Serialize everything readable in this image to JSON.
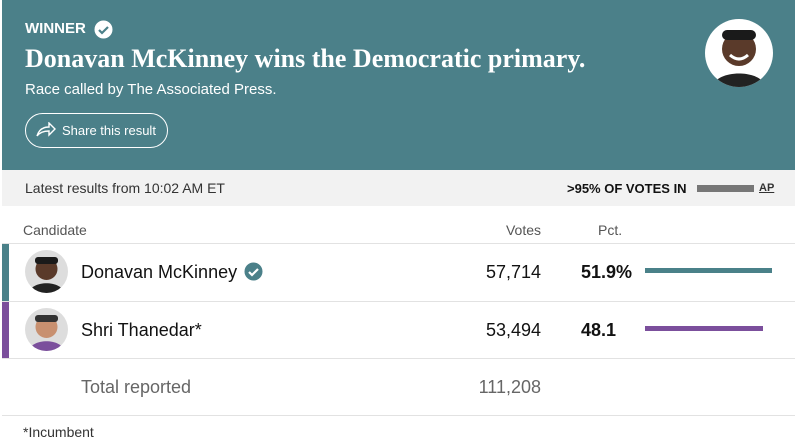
{
  "header": {
    "label": "WINNER",
    "title": "Donavan McKinney wins the Democratic primary.",
    "subtitle": "Race called by The Associated Press.",
    "share_button": "Share this result"
  },
  "status": {
    "latest": "Latest results from 10:02 AM ET",
    "votes_in": ">95% OF VOTES IN",
    "source": "AP"
  },
  "table": {
    "columns": [
      "Candidate",
      "Votes",
      "Pct."
    ],
    "rows": [
      {
        "name": "Donavan McKinney",
        "votes": "57,714",
        "pct": 51.9,
        "pct_label": "51.9%",
        "color": "#4a8189",
        "winner": true
      },
      {
        "name": "Shri Thanedar*",
        "votes": "53,494",
        "pct": 48.1,
        "pct_label": "48.1",
        "color": "#7b4f9c",
        "winner": false
      }
    ],
    "total": {
      "label": "Total reported",
      "votes": "111,208"
    }
  },
  "footnote": "*Incumbent"
}
